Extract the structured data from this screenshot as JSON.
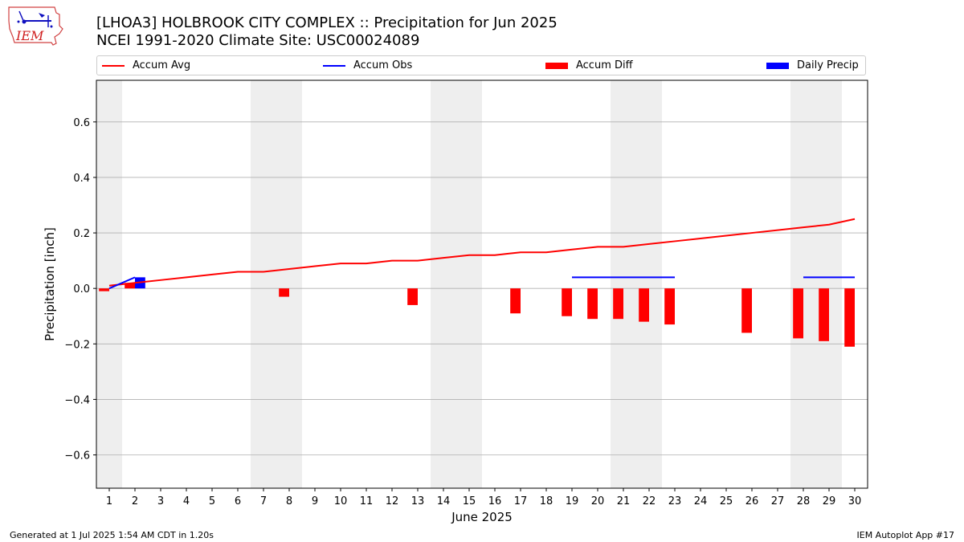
{
  "logo_text": "IEM",
  "title_line1": "[LHOA3] HOLBROOK CITY COMPLEX :: Precipitation for Jun 2025",
  "title_line2": "NCEI 1991-2020 Climate Site: USC00024089",
  "footer_left": "Generated at 1 Jul 2025 1:54 AM CDT in 1.20s",
  "footer_right": "IEM Autoplot App #17",
  "colors": {
    "avg": "#ff0000",
    "obs": "#0000ff",
    "diff": "#ff0000",
    "daily": "#0000ff",
    "weekend": "#eeeeee",
    "grid": "#b0b0b0"
  },
  "legend": [
    {
      "label": "Accum Avg",
      "kind": "line",
      "color": "#ff0000"
    },
    {
      "label": "Accum Obs",
      "kind": "line",
      "color": "#0000ff"
    },
    {
      "label": "Accum Diff",
      "kind": "bar",
      "color": "#ff0000"
    },
    {
      "label": "Daily Precip",
      "kind": "bar",
      "color": "#0000ff"
    }
  ],
  "chart_data": {
    "type": "bar",
    "xlabel": "June 2025",
    "ylabel": "Precipitation [inch]",
    "xlim": [
      0.5,
      30.5
    ],
    "ylim": [
      -0.72,
      0.75
    ],
    "yticks": [
      0.6,
      0.4,
      0.2,
      0.0,
      -0.2,
      -0.4,
      -0.6
    ],
    "ytick_labels": [
      "0.6",
      "0.4",
      "0.2",
      "0.0",
      "−0.2",
      "−0.4",
      "−0.6"
    ],
    "xticks": [
      1,
      2,
      3,
      4,
      5,
      6,
      7,
      8,
      9,
      10,
      11,
      12,
      13,
      14,
      15,
      16,
      17,
      18,
      19,
      20,
      21,
      22,
      23,
      24,
      25,
      26,
      27,
      28,
      29,
      30
    ],
    "grid": "y",
    "weekend_spans": [
      [
        0.5,
        1.5
      ],
      [
        6.5,
        8.5
      ],
      [
        13.5,
        15.5
      ],
      [
        20.5,
        22.5
      ],
      [
        27.5,
        29.5
      ]
    ],
    "accum_avg": {
      "x": [
        1,
        2,
        3,
        4,
        5,
        6,
        7,
        8,
        9,
        10,
        11,
        12,
        13,
        14,
        15,
        16,
        17,
        18,
        19,
        20,
        21,
        22,
        23,
        24,
        25,
        26,
        27,
        28,
        29,
        30
      ],
      "y": [
        0.01,
        0.02,
        0.03,
        0.04,
        0.05,
        0.06,
        0.06,
        0.07,
        0.08,
        0.09,
        0.09,
        0.1,
        0.1,
        0.11,
        0.12,
        0.12,
        0.13,
        0.13,
        0.14,
        0.15,
        0.15,
        0.16,
        0.17,
        0.18,
        0.19,
        0.2,
        0.21,
        0.22,
        0.23,
        0.25
      ]
    },
    "accum_obs": [
      {
        "x": [
          1,
          2
        ],
        "y": [
          0.0,
          0.04
        ]
      },
      {
        "x": [
          19,
          20,
          21,
          22,
          23
        ],
        "y": [
          0.04,
          0.04,
          0.04,
          0.04,
          0.04
        ]
      },
      {
        "x": [
          28,
          29,
          30
        ],
        "y": [
          0.04,
          0.04,
          0.04
        ]
      }
    ],
    "accum_diff": {
      "x": [
        1,
        2,
        8,
        13,
        17,
        19,
        20,
        21,
        22,
        23,
        26,
        28,
        29,
        30
      ],
      "y": [
        -0.01,
        0.02,
        -0.03,
        -0.06,
        -0.09,
        -0.1,
        -0.11,
        -0.11,
        -0.12,
        -0.13,
        -0.16,
        -0.18,
        -0.19,
        -0.21
      ]
    },
    "daily_precip": {
      "x": [
        2
      ],
      "y": [
        0.04
      ]
    }
  }
}
